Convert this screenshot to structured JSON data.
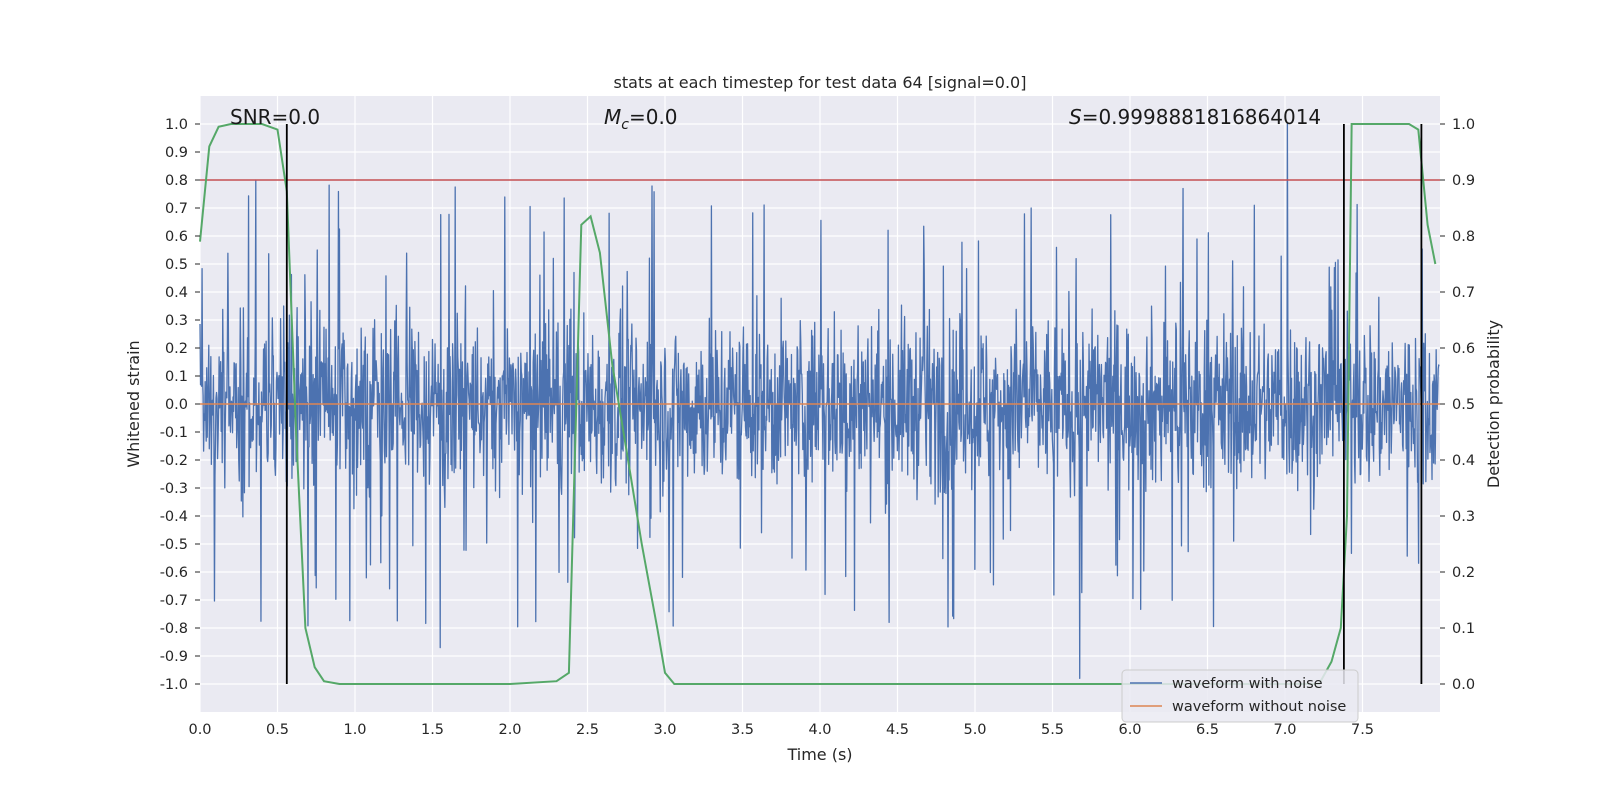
{
  "chart_data": {
    "type": "line",
    "title": "stats at each timestep for test data 64 [signal=0.0]",
    "xlabel": "Time (s)",
    "ylabel": "Whitened strain",
    "y2label": "Detection probability",
    "xlim": [
      0.0,
      8.0
    ],
    "ylim": [
      -1.1,
      1.1
    ],
    "y2lim": [
      -0.05,
      1.05
    ],
    "xticks": [
      "0.0",
      "0.5",
      "1.0",
      "1.5",
      "2.0",
      "2.5",
      "3.0",
      "3.5",
      "4.0",
      "4.5",
      "5.0",
      "5.5",
      "6.0",
      "6.5",
      "7.0",
      "7.5"
    ],
    "yticks": [
      "1.0",
      "0.9",
      "0.8",
      "0.7",
      "0.6",
      "0.5",
      "0.4",
      "0.3",
      "0.2",
      "0.1",
      "0.0",
      "-0.1",
      "-0.2",
      "-0.3",
      "-0.4",
      "-0.5",
      "-0.6",
      "-0.7",
      "-0.8",
      "-0.9",
      "-1.0"
    ],
    "y2ticks": [
      "1.0",
      "0.9",
      "0.8",
      "0.7",
      "0.6",
      "0.5",
      "0.4",
      "0.3",
      "0.2",
      "0.1",
      "0.0"
    ],
    "grid": true,
    "legend_position": "bottom-right",
    "annotations": {
      "snr": "SNR=0.0",
      "mc_symbol": "M",
      "mc_subscript": "c",
      "mc_value": "=0.0",
      "s_symbol": "S",
      "s_value": "=0.9998881816864014"
    },
    "threshold": {
      "y2": 0.9,
      "color": "#c44e52"
    },
    "vertical_lines": [
      0.56,
      7.38,
      7.88
    ],
    "series": [
      {
        "name": "waveform with noise",
        "axis": "left",
        "color": "#4c72b0",
        "typical_amplitude": 0.4,
        "max_amplitude": 0.8,
        "spikes": [
          [
            7.02,
            1.0
          ],
          [
            5.68,
            -0.98
          ],
          [
            1.55,
            -0.87
          ],
          [
            0.36,
            0.8
          ],
          [
            4.45,
            -0.78
          ]
        ]
      },
      {
        "name": "waveform without noise",
        "axis": "left",
        "color": "#dd8452",
        "x": [
          0.0,
          8.0
        ],
        "y": [
          0.0,
          0.0
        ]
      },
      {
        "name": "Detection probability",
        "axis": "right",
        "color": "#55a868",
        "x": [
          0.0,
          0.06,
          0.12,
          0.2,
          0.3,
          0.4,
          0.5,
          0.56,
          0.62,
          0.68,
          0.74,
          0.8,
          0.9,
          1.0,
          1.5,
          2.0,
          2.3,
          2.38,
          2.46,
          2.52,
          2.58,
          2.66,
          2.75,
          2.85,
          2.95,
          3.0,
          3.06,
          3.12,
          3.5,
          4.0,
          5.0,
          6.0,
          7.0,
          7.22,
          7.3,
          7.36,
          7.4,
          7.43,
          7.5,
          7.6,
          7.7,
          7.8,
          7.86,
          7.92,
          7.97
        ],
        "y": [
          0.79,
          0.96,
          0.995,
          1.0,
          1.0,
          1.0,
          0.99,
          0.88,
          0.45,
          0.1,
          0.03,
          0.005,
          0.0,
          0.0,
          0.0,
          0.0,
          0.005,
          0.02,
          0.82,
          0.835,
          0.77,
          0.57,
          0.42,
          0.25,
          0.1,
          0.02,
          0.0,
          0.0,
          0.0,
          0.0,
          0.0,
          0.0,
          0.0,
          0.0,
          0.04,
          0.1,
          0.3,
          1.0,
          1.0,
          1.0,
          1.0,
          1.0,
          0.99,
          0.82,
          0.75
        ]
      }
    ]
  }
}
